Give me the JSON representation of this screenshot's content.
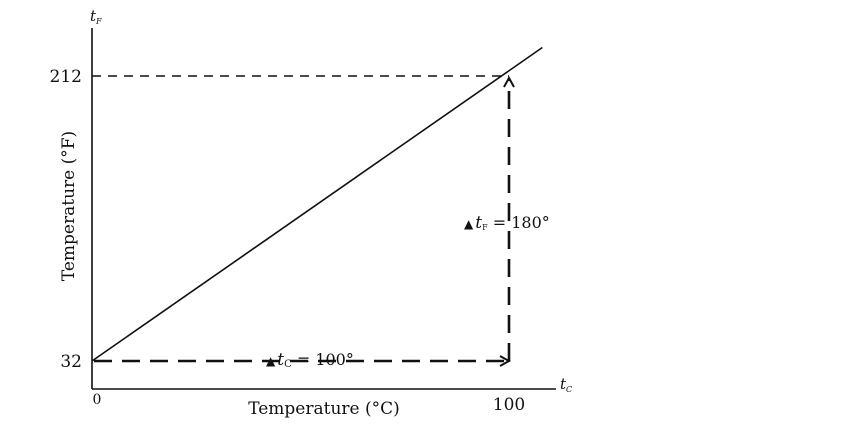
{
  "chart_data": {
    "type": "line",
    "xlabel": "Temperature (°C)",
    "ylabel": "Temperature (°F)",
    "x_axis_symbol": {
      "main": "t",
      "sub": "C"
    },
    "y_axis_symbol": {
      "main": "t",
      "sub": "F"
    },
    "x_ticks": [
      {
        "value": 0,
        "label": "0"
      },
      {
        "value": 100,
        "label": "100"
      }
    ],
    "y_ticks": [
      {
        "value": 32,
        "label": "32"
      },
      {
        "value": 212,
        "label": "212"
      }
    ],
    "xlim": [
      0,
      108
    ],
    "ylim": [
      32,
      240
    ],
    "grid": false,
    "series": [
      {
        "x": [
          0,
          100,
          108
        ],
        "y": [
          32,
          212,
          230
        ],
        "color": "#111111"
      }
    ],
    "reference_lines": [
      {
        "kind": "horizontal",
        "y": 212,
        "from_x": 0,
        "to_x": 100
      }
    ],
    "annotations": [
      {
        "id": "delta-c",
        "from": [
          0,
          32
        ],
        "to": [
          100,
          32
        ],
        "symbol": "t",
        "sub": "C",
        "text_after": " = 100°"
      },
      {
        "id": "delta-f",
        "from": [
          100,
          32
        ],
        "to": [
          100,
          212
        ],
        "symbol": "t",
        "sub": "F",
        "text_after": " = 180°"
      }
    ]
  }
}
